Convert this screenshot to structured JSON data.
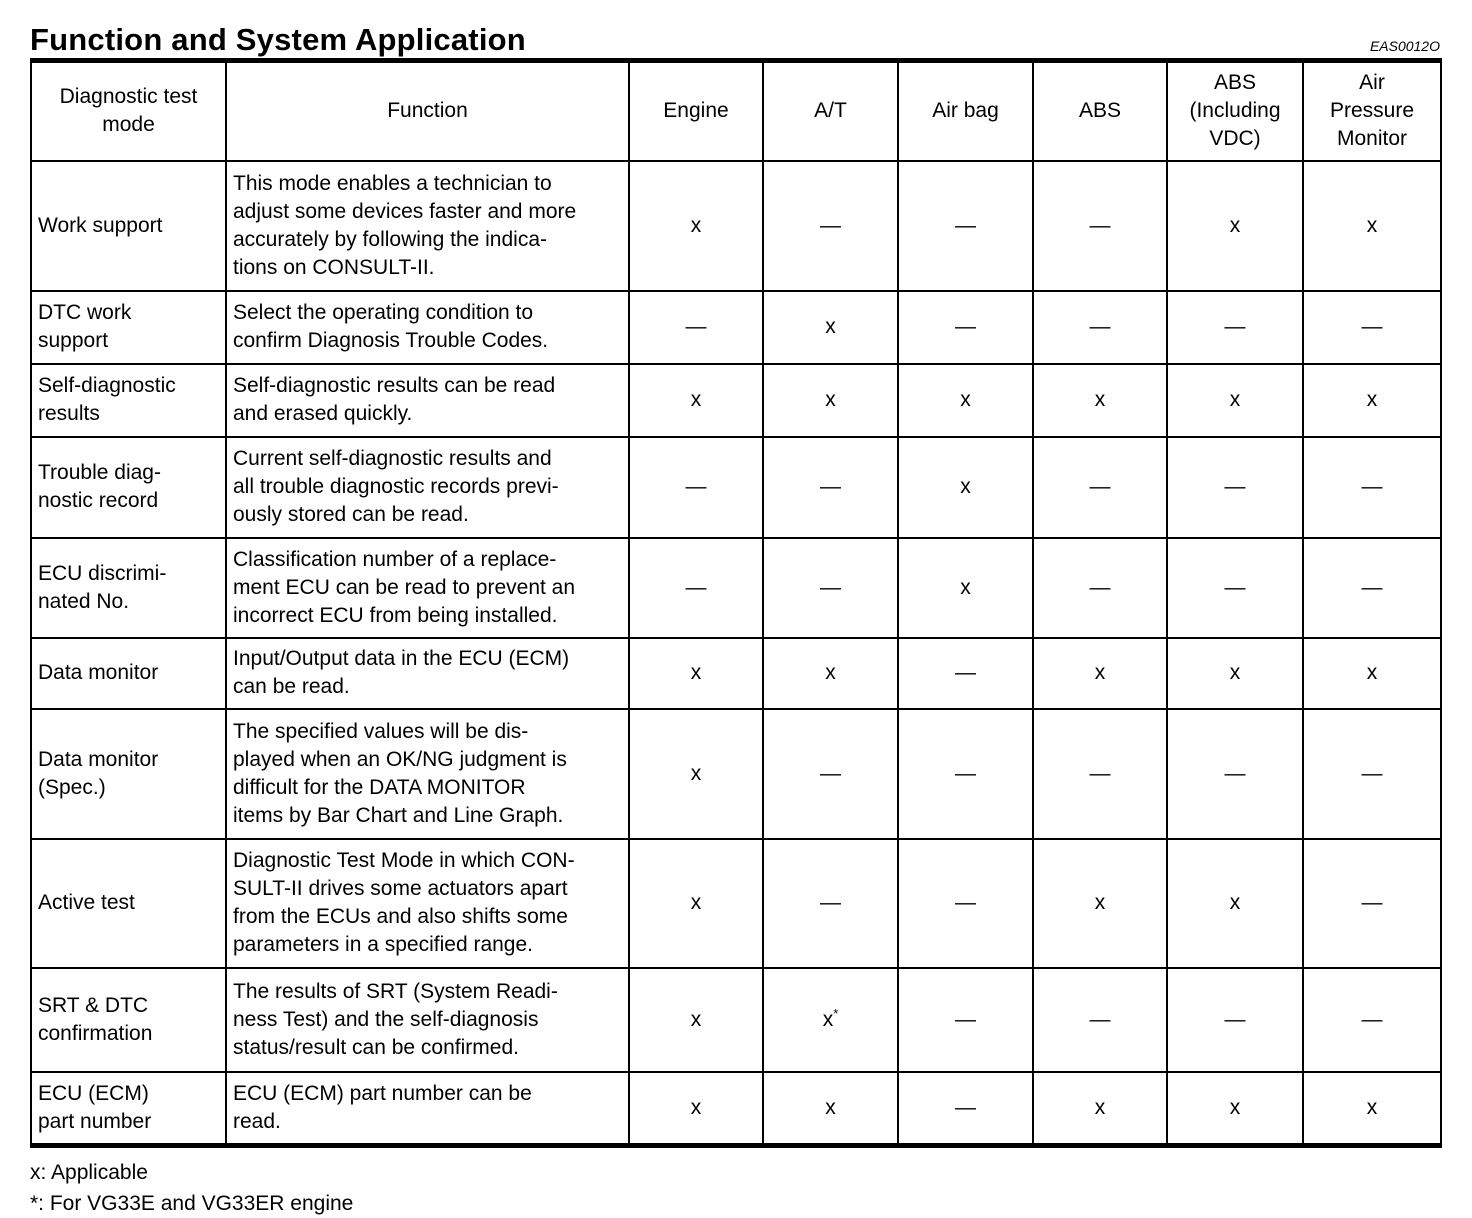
{
  "page": {
    "title": "Function and System Application",
    "doc_code": "EAS0012O"
  },
  "table": {
    "headers": [
      "Diagnostic test\nmode",
      "Function",
      "Engine",
      "A/T",
      "Air bag",
      "ABS",
      "ABS\n(Including\nVDC)",
      "Air\nPressure\nMonitor"
    ],
    "rows": [
      {
        "mode": "Work support",
        "function": "This mode enables a technician to\nadjust some devices faster and more\naccurately by following the indica-\ntions on CONSULT-II.",
        "marks": [
          "x",
          "—",
          "—",
          "—",
          "x",
          "x"
        ]
      },
      {
        "mode": "DTC work\nsupport",
        "function": "Select the operating condition to\nconfirm Diagnosis Trouble Codes.",
        "marks": [
          "—",
          "x",
          "—",
          "—",
          "—",
          "—"
        ]
      },
      {
        "mode": "Self-diagnostic\nresults",
        "function": "Self-diagnostic results can be read\nand erased quickly.",
        "marks": [
          "x",
          "x",
          "x",
          "x",
          "x",
          "x"
        ]
      },
      {
        "mode": "Trouble diag-\nnostic record",
        "function": "Current self-diagnostic results and\nall trouble diagnostic records previ-\nously stored can be read.",
        "marks": [
          "—",
          "—",
          "x",
          "—",
          "—",
          "—"
        ]
      },
      {
        "mode": "ECU discrimi-\nnated No.",
        "function": "Classification number of a replace-\nment ECU can be read to prevent an\nincorrect ECU from being installed.",
        "marks": [
          "—",
          "—",
          "x",
          "—",
          "—",
          "—"
        ]
      },
      {
        "mode": "Data monitor",
        "function": "Input/Output data in the ECU (ECM)\ncan be read.",
        "marks": [
          "x",
          "x",
          "—",
          "x",
          "x",
          "x"
        ]
      },
      {
        "mode": "Data monitor\n(Spec.)",
        "function": "The specified values will be dis-\nplayed when an OK/NG judgment is\ndifficult for the DATA MONITOR\nitems by Bar Chart and Line Graph.",
        "marks": [
          "x",
          "—",
          "—",
          "—",
          "—",
          "—"
        ]
      },
      {
        "mode": "Active test",
        "function": "Diagnostic Test Mode in which CON-\nSULT-II drives some actuators apart\nfrom the ECUs and also shifts some\nparameters in a specified range.",
        "marks": [
          "x",
          "—",
          "—",
          "x",
          "x",
          "—"
        ]
      },
      {
        "mode": "SRT & DTC\nconfirmation",
        "function": "The results of SRT (System Readi-\nness Test) and the self-diagnosis\nstatus/result can be confirmed.",
        "marks": [
          "x",
          "x*",
          "—",
          "—",
          "—",
          "—"
        ]
      },
      {
        "mode": "ECU (ECM)\npart number",
        "function": "ECU (ECM) part number can be\nread.",
        "marks": [
          "x",
          "x",
          "—",
          "x",
          "x",
          "x"
        ]
      }
    ]
  },
  "footnotes": [
    "x: Applicable",
    "*: For VG33E and VG33ER engine"
  ]
}
